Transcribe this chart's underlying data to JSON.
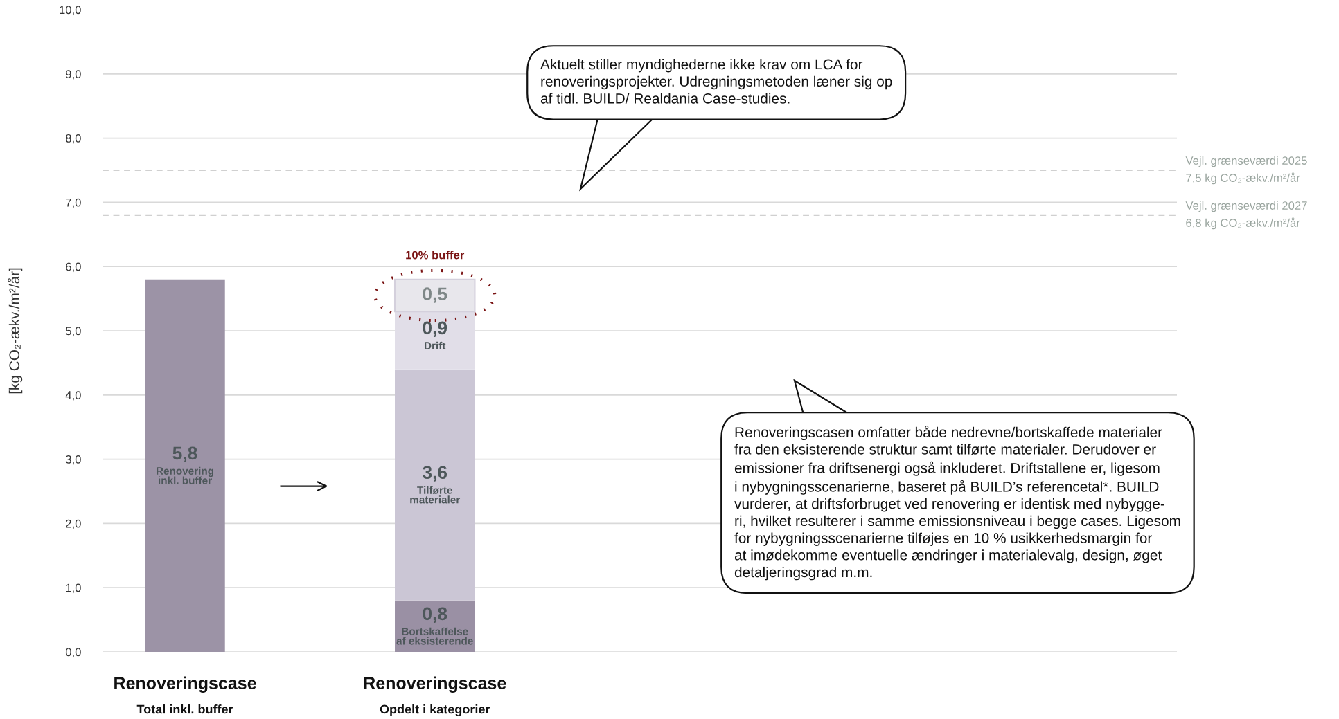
{
  "chart_data": {
    "type": "bar",
    "stacked": true,
    "ylabel": "[kg CO₂-ækv./m²/år]",
    "categories": [
      "Renoveringscase\nTotal inkl. buffer",
      "Renoveringscase\nOpdelt i kategorier"
    ],
    "series": [
      {
        "name": "Renovering\ninkl. buffer",
        "color": "#9c93a6",
        "values": [
          5.8,
          null
        ],
        "value_labels": [
          "5,8",
          null
        ]
      },
      {
        "name": "Bortskaffelse\naf eksisterende",
        "color": "#9a90a4",
        "values": [
          null,
          0.8
        ],
        "value_labels": [
          null,
          "0,8"
        ]
      },
      {
        "name": "Tilførte\nmaterialer",
        "color": "#cbc6d5",
        "values": [
          null,
          3.6
        ],
        "value_labels": [
          null,
          "3,6"
        ]
      },
      {
        "name": "Drift",
        "color": "#e1dee8",
        "values": [
          null,
          0.9
        ],
        "value_labels": [
          null,
          "0,9"
        ]
      },
      {
        "color": "#e8e7ec",
        "values": [
          null,
          0.5
        ],
        "value_labels": [
          null,
          "0,5"
        ]
      }
    ],
    "ylim": [
      0,
      10
    ],
    "yticks": [
      {
        "value": 0,
        "label": "0,0"
      },
      {
        "value": 1,
        "label": "1,0"
      },
      {
        "value": 2,
        "label": "2,0"
      },
      {
        "value": 3,
        "label": "3,0"
      },
      {
        "value": 4,
        "label": "4,0"
      },
      {
        "value": 5,
        "label": "5,0"
      },
      {
        "value": 6,
        "label": "6,0"
      },
      {
        "value": 7,
        "label": "7,0"
      },
      {
        "value": 8,
        "label": "8,0"
      },
      {
        "value": 9,
        "label": "9,0"
      },
      {
        "value": 10,
        "label": "10,0"
      }
    ],
    "grid": "y",
    "ref_lines": [
      {
        "axis": "y",
        "value": 7.5,
        "label": "Vejl. grænseværdi 2025\n7,5 kg CO₂-ækv./m²/år",
        "color": "#d0d0d0",
        "line_style": "dashed"
      },
      {
        "axis": "y",
        "value": 6.8,
        "label": "Vejl. grænseværdi 2027\n6,8 kg CO₂-ækv./m²/år",
        "color": "#d0d0d0",
        "line_style": "dashed"
      }
    ],
    "annotations": [
      "Aktuelt stiller myndighederne ikke krav om LCA for\nrenoveringsprojekter. Udregningsmetoden læner sig op\naf tidl. BUILD/ Realdania Case-studies.",
      "Renoveringscasen omfatter både nedrevne/bortskaffede materialer\nfra den eksisterende struktur samt tilførte materialer. Derudover er\nemissioner fra driftsenergi også inkluderet. Driftstallene er, ligesom\ni nybygningsscenarierne, baseret på BUILD’s referencetal*. BUILD\nvurderer, at driftsforbruget ved renovering er identisk med nybygge-\nri, hvilket resulterer i samme emissionsniveau i begge cases. Ligesom\nfor nybygningsscenarierne tilføjes en 10 % usikkerhedsmargin for\nat imødekomme eventuelle ændringer i materialevalg, design, øget\ndetaljeringsgrad m.m.",
      "10% buffer"
    ]
  }
}
